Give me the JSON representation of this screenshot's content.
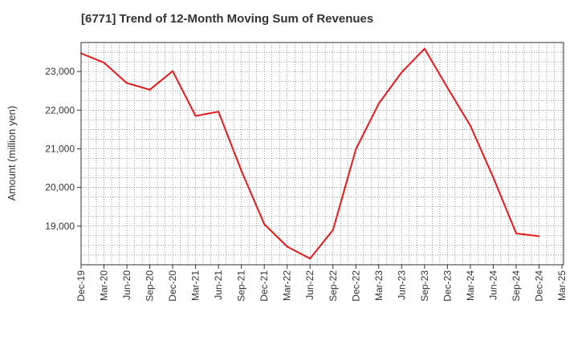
{
  "chart_data": {
    "type": "line",
    "title": "[6771]  Trend of 12-Month Moving Sum of Revenues",
    "ylabel": "Amount (million yen)",
    "xlabel": "",
    "grid": true,
    "x_ticks": [
      "Dec-19",
      "Mar-20",
      "Jun-20",
      "Sep-20",
      "Dec-20",
      "Mar-21",
      "Jun-21",
      "Sep-21",
      "Dec-21",
      "Mar-22",
      "Jun-22",
      "Sep-22",
      "Dec-22",
      "Mar-23",
      "Jun-23",
      "Sep-23",
      "Dec-23",
      "Mar-24",
      "Jun-24",
      "Sep-24",
      "Dec-24",
      "Mar-25"
    ],
    "y_ticks": [
      19000,
      20000,
      21000,
      22000,
      23000
    ],
    "y_tick_labels": [
      "19,000",
      "20,000",
      "21,000",
      "22,000",
      "23,000"
    ],
    "ylim": [
      18000,
      23750
    ],
    "series": [
      {
        "color": "#e8191b",
        "x": [
          "Dec-19",
          "Mar-20",
          "Jun-20",
          "Sep-20",
          "Dec-20",
          "Mar-21",
          "Jun-21",
          "Sep-21",
          "Dec-21",
          "Mar-22",
          "Jun-22",
          "Sep-22",
          "Dec-22",
          "Mar-23",
          "Jun-23",
          "Sep-23",
          "Dec-23",
          "Mar-24",
          "Jun-24",
          "Sep-24",
          "Dec-24"
        ],
        "values": [
          23470,
          23230,
          22700,
          22530,
          23010,
          21850,
          21960,
          20430,
          19050,
          18470,
          18160,
          18900,
          20990,
          22170,
          22980,
          23590,
          22580,
          21600,
          20260,
          18810,
          18740
        ]
      }
    ]
  }
}
